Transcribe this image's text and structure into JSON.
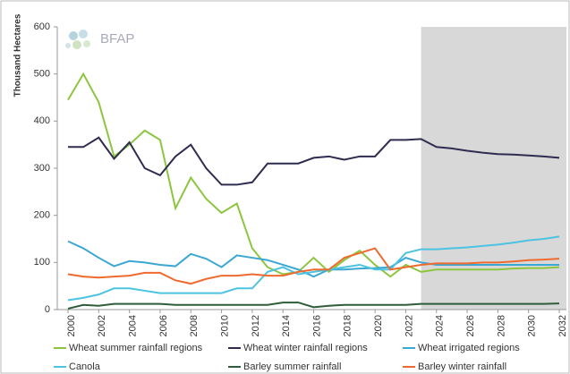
{
  "chart_data": {
    "type": "line",
    "y_label": "Thousand Hectares",
    "logo": "BFAP",
    "x": [
      2000,
      2001,
      2002,
      2003,
      2004,
      2005,
      2006,
      2007,
      2008,
      2009,
      2010,
      2011,
      2012,
      2013,
      2014,
      2015,
      2016,
      2017,
      2018,
      2019,
      2020,
      2021,
      2022,
      2023,
      2024,
      2025,
      2026,
      2027,
      2028,
      2029,
      2030,
      2031,
      2032
    ],
    "xlim": [
      2000,
      2032
    ],
    "xticks": [
      2000,
      2002,
      2004,
      2006,
      2008,
      2010,
      2012,
      2014,
      2016,
      2018,
      2020,
      2022,
      2024,
      2026,
      2028,
      2030,
      2032
    ],
    "ylim": [
      0,
      600
    ],
    "yticks": [
      0,
      100,
      200,
      300,
      400,
      500,
      600
    ],
    "shade_from": 2023,
    "shade_color": "#d9d8d9",
    "series": [
      {
        "name": "Wheat summer rainfall regions",
        "color": "#8cc63f",
        "values": [
          445,
          500,
          440,
          325,
          350,
          380,
          360,
          215,
          280,
          235,
          205,
          225,
          130,
          90,
          75,
          80,
          110,
          80,
          105,
          125,
          95,
          70,
          95,
          80,
          85,
          85,
          85,
          85,
          85,
          87,
          88,
          88,
          90
        ]
      },
      {
        "name": "Wheat winter rainfall regions",
        "color": "#2e2c4f",
        "values": [
          345,
          345,
          365,
          320,
          355,
          300,
          285,
          325,
          350,
          300,
          265,
          265,
          270,
          310,
          310,
          310,
          322,
          325,
          318,
          325,
          325,
          360,
          360,
          362,
          345,
          342,
          337,
          333,
          330,
          329,
          327,
          325,
          322
        ]
      },
      {
        "name": "Wheat irrigated regions",
        "color": "#3ba7d3",
        "values": [
          145,
          130,
          110,
          92,
          103,
          100,
          95,
          92,
          118,
          108,
          90,
          115,
          110,
          105,
          95,
          85,
          70,
          85,
          85,
          87,
          88,
          90,
          110,
          100,
          95,
          95,
          95,
          95,
          95,
          95,
          95,
          95,
          95
        ]
      },
      {
        "name": "Canola",
        "color": "#4cc3e0",
        "values": [
          20,
          25,
          32,
          45,
          45,
          40,
          35,
          35,
          35,
          35,
          35,
          45,
          45,
          80,
          90,
          75,
          80,
          85,
          90,
          95,
          85,
          85,
          120,
          128,
          128,
          130,
          132,
          135,
          138,
          142,
          147,
          150,
          155
        ]
      },
      {
        "name": "Barley summer rainfall",
        "color": "#2f5d3a",
        "values": [
          2,
          10,
          8,
          12,
          12,
          12,
          12,
          10,
          10,
          10,
          10,
          10,
          10,
          10,
          15,
          15,
          5,
          8,
          10,
          10,
          10,
          10,
          10,
          12,
          12,
          12,
          12,
          12,
          12,
          12,
          12,
          12,
          13
        ]
      },
      {
        "name": "Barley winter rainfall",
        "color": "#ee6a2e",
        "values": [
          75,
          70,
          68,
          70,
          72,
          78,
          78,
          62,
          55,
          65,
          72,
          72,
          75,
          72,
          72,
          80,
          85,
          85,
          110,
          120,
          130,
          85,
          90,
          95,
          98,
          98,
          98,
          100,
          100,
          102,
          105,
          106,
          108
        ]
      }
    ]
  }
}
